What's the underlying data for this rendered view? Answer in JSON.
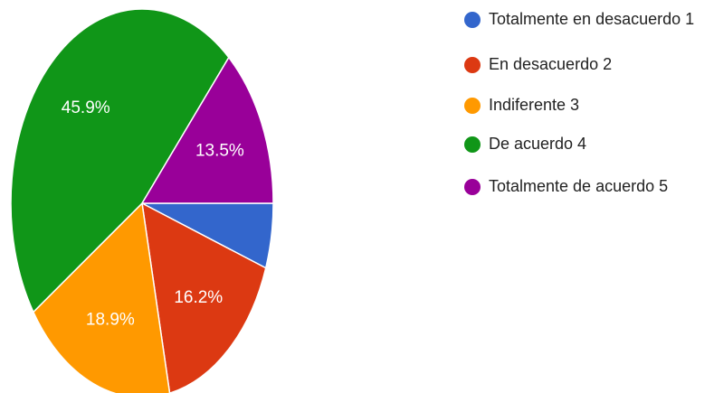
{
  "chart_data": {
    "type": "pie",
    "categories": [
      "Totalmente en desacuerdo 1",
      "En desacuerdo 2",
      "Indiferente 3",
      "De acuerdo 4",
      "Totalmente de acuerdo 5"
    ],
    "values": [
      5.4,
      16.2,
      18.9,
      45.9,
      13.5
    ],
    "value_labels": [
      null,
      "16.2%",
      "18.9%",
      "45.9%",
      "13.5%"
    ],
    "colors": [
      "#3366cc",
      "#dc3912",
      "#ff9900",
      "#109618",
      "#990099"
    ],
    "legend": "right"
  }
}
